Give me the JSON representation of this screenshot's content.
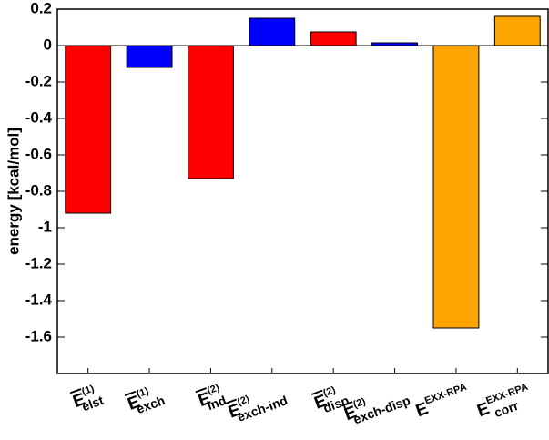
{
  "chart_data": {
    "type": "bar",
    "y_label": "energy [kcal/mol]",
    "categories": [
      {
        "main": "E",
        "sup": "(1)",
        "sub": "elst",
        "overline": true
      },
      {
        "main": "E",
        "sup": "(1)",
        "sub": "exch",
        "overline": true
      },
      {
        "main": "E",
        "sup": "(2)",
        "sub": "ind",
        "overline": true
      },
      {
        "main": "E",
        "sup": "(2)",
        "sub": "exch-ind",
        "overline": true
      },
      {
        "main": "E",
        "sup": "(2)",
        "sub": "disp",
        "overline": true
      },
      {
        "main": "E",
        "sup": "(2)",
        "sub": "exch-disp",
        "overline": true
      },
      {
        "main": "E",
        "sup": "EXX-RPA",
        "overline": false
      },
      {
        "main": "E",
        "sup": "EXX-RPA",
        "sub": "corr",
        "overline": false
      }
    ],
    "values": [
      -0.92,
      -0.12,
      -0.73,
      0.15,
      0.075,
      0.015,
      -1.55,
      0.16
    ],
    "colors": [
      "#ff0000",
      "#0000ff",
      "#ff0000",
      "#0000ff",
      "#ff0000",
      "#0000ff",
      "#ffa500",
      "#ffa500"
    ],
    "ylim": [
      -1.8,
      0.2
    ],
    "yticks": [
      0.2,
      0,
      -0.2,
      -0.4,
      -0.6,
      -0.8,
      -1,
      -1.2,
      -1.4,
      -1.6
    ],
    "grid": false
  }
}
